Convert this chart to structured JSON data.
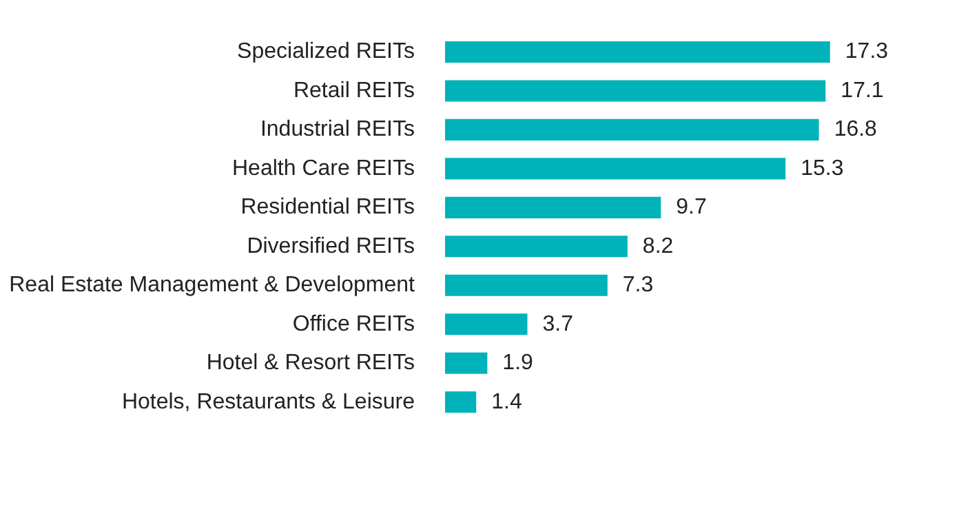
{
  "chart_data": {
    "type": "bar",
    "orientation": "horizontal",
    "categories": [
      "Specialized REITs",
      "Retail REITs",
      "Industrial REITs",
      "Health Care REITs",
      "Residential REITs",
      "Diversified REITs",
      "Real Estate Management & Development",
      "Office REITs",
      "Hotel & Resort REITs",
      "Hotels, Restaurants & Leisure"
    ],
    "values": [
      17.3,
      17.1,
      16.8,
      15.3,
      9.7,
      8.2,
      7.3,
      3.7,
      1.9,
      1.4
    ],
    "color": "#00b2b9",
    "data_labels": true
  }
}
